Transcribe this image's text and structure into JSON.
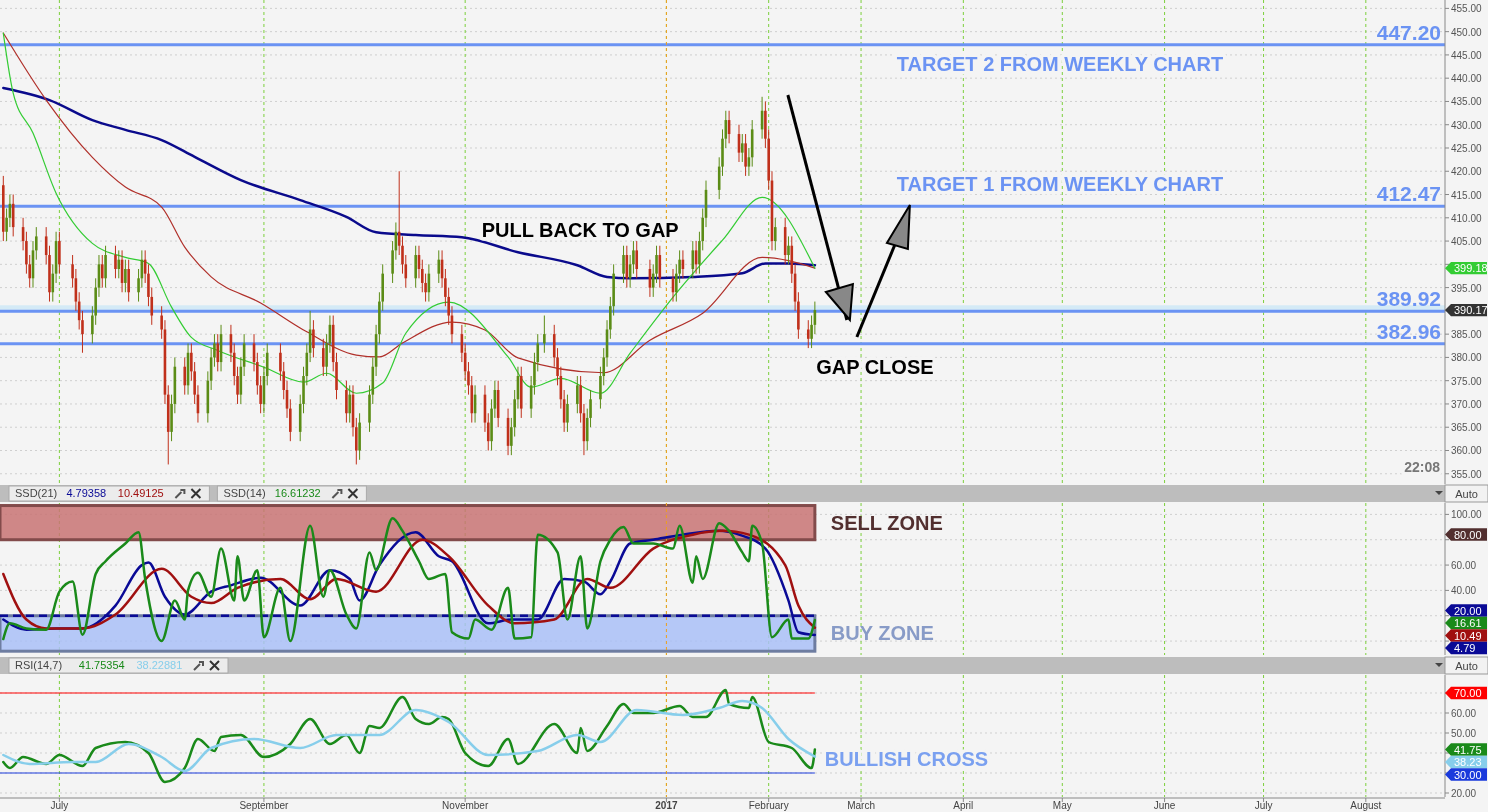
{
  "chart_data": [
    {
      "type": "candlestick",
      "xlim": [
        "2016-06-13",
        "2017-08-25"
      ],
      "ylim": [
        352.8,
        456.8
      ],
      "xticks": [
        {
          "value": "2016-07-01",
          "label": null
        },
        {
          "value": "2016-09-01",
          "label": null
        },
        {
          "value": "2016-11-01",
          "label": null
        },
        {
          "value": "2017-01-01",
          "label": null
        },
        {
          "value": "2017-02-01",
          "label": null
        },
        {
          "value": "2017-03-01",
          "label": null
        },
        {
          "value": "2017-04-01",
          "label": null
        },
        {
          "value": "2017-05-01",
          "label": null
        },
        {
          "value": "2017-06-01",
          "label": null
        },
        {
          "value": "2017-07-01",
          "label": null
        },
        {
          "value": "2017-08-01",
          "label": null
        }
      ],
      "yticks": [
        {
          "value": 355,
          "label": "355.00"
        },
        {
          "value": 360,
          "label": "360.00"
        },
        {
          "value": 365,
          "label": "365.00"
        },
        {
          "value": 370,
          "label": "370.00"
        },
        {
          "value": 375,
          "label": "375.00"
        },
        {
          "value": 380,
          "label": "380.00"
        },
        {
          "value": 385,
          "label": "385.00"
        },
        {
          "value": 390,
          "label": null
        },
        {
          "value": 395,
          "label": "395.00"
        },
        {
          "value": 400,
          "label": null
        },
        {
          "value": 405,
          "label": "405.00"
        },
        {
          "value": 410,
          "label": "410.00"
        },
        {
          "value": 415,
          "label": "415.00"
        },
        {
          "value": 420,
          "label": "420.00"
        },
        {
          "value": 425,
          "label": "425.00"
        },
        {
          "value": 430,
          "label": "430.00"
        },
        {
          "value": 435,
          "label": "435.00"
        },
        {
          "value": 440,
          "label": "440.00"
        },
        {
          "value": 445,
          "label": "445.00"
        },
        {
          "value": 450,
          "label": "450.00"
        },
        {
          "value": 455,
          "label": "455.00"
        }
      ],
      "tick_labels": "y",
      "grid": true,
      "x": [
        "2016-06-14",
        "2016-06-15",
        "2016-06-16",
        "2016-06-17",
        "2016-06-20",
        "2016-06-21",
        "2016-06-22",
        "2016-06-23",
        "2016-06-24",
        "2016-06-27",
        "2016-06-28",
        "2016-06-29",
        "2016-06-30",
        "2016-07-01",
        "2016-07-05",
        "2016-07-06",
        "2016-07-07",
        "2016-07-08",
        "2016-07-11",
        "2016-07-12",
        "2016-07-13",
        "2016-07-14",
        "2016-07-15",
        "2016-07-18",
        "2016-07-19",
        "2016-07-20",
        "2016-07-21",
        "2016-07-22",
        "2016-07-25",
        "2016-07-26",
        "2016-07-27",
        "2016-07-28",
        "2016-07-29",
        "2016-08-01",
        "2016-08-02",
        "2016-08-03",
        "2016-08-04",
        "2016-08-05",
        "2016-08-08",
        "2016-08-09",
        "2016-08-10",
        "2016-08-11",
        "2016-08-12",
        "2016-08-15",
        "2016-08-16",
        "2016-08-17",
        "2016-08-18",
        "2016-08-19",
        "2016-08-22",
        "2016-08-23",
        "2016-08-24",
        "2016-08-25",
        "2016-08-26",
        "2016-08-29",
        "2016-08-30",
        "2016-08-31",
        "2016-09-01",
        "2016-09-02",
        "2016-09-06",
        "2016-09-07",
        "2016-09-08",
        "2016-09-09",
        "2016-09-12",
        "2016-09-13",
        "2016-09-14",
        "2016-09-15",
        "2016-09-16",
        "2016-09-19",
        "2016-09-20",
        "2016-09-21",
        "2016-09-22",
        "2016-09-23",
        "2016-09-26",
        "2016-09-27",
        "2016-09-28",
        "2016-09-29",
        "2016-09-30",
        "2016-10-03",
        "2016-10-04",
        "2016-10-05",
        "2016-10-06",
        "2016-10-07",
        "2016-10-10",
        "2016-10-11",
        "2016-10-12",
        "2016-10-13",
        "2016-10-14",
        "2016-10-17",
        "2016-10-18",
        "2016-10-19",
        "2016-10-20",
        "2016-10-21",
        "2016-10-24",
        "2016-10-25",
        "2016-10-26",
        "2016-10-27",
        "2016-10-28",
        "2016-10-31",
        "2016-11-01",
        "2016-11-02",
        "2016-11-03",
        "2016-11-04",
        "2016-11-07",
        "2016-11-08",
        "2016-11-09",
        "2016-11-10",
        "2016-11-11",
        "2016-11-14",
        "2016-11-15",
        "2016-11-16",
        "2016-11-17",
        "2016-11-18",
        "2016-11-21",
        "2016-11-22",
        "2016-11-23",
        "2016-11-25",
        "2016-11-28",
        "2016-11-29",
        "2016-11-30",
        "2016-12-01",
        "2016-12-02",
        "2016-12-05",
        "2016-12-06",
        "2016-12-07",
        "2016-12-08",
        "2016-12-09",
        "2016-12-12",
        "2016-12-13",
        "2016-12-14",
        "2016-12-15",
        "2016-12-16",
        "2016-12-19",
        "2016-12-20",
        "2016-12-21",
        "2016-12-22",
        "2016-12-23",
        "2016-12-27",
        "2016-12-28",
        "2016-12-29",
        "2016-12-30",
        "2017-01-03",
        "2017-01-04",
        "2017-01-05",
        "2017-01-06",
        "2017-01-09",
        "2017-01-10",
        "2017-01-11",
        "2017-01-12",
        "2017-01-13",
        "2017-01-17",
        "2017-01-18",
        "2017-01-19",
        "2017-01-20",
        "2017-01-23",
        "2017-01-24",
        "2017-01-25",
        "2017-01-26",
        "2017-01-27",
        "2017-01-30",
        "2017-01-31",
        "2017-02-01",
        "2017-02-02",
        "2017-02-03",
        "2017-02-06",
        "2017-02-07",
        "2017-02-08",
        "2017-02-09",
        "2017-02-10",
        "2017-02-13",
        "2017-02-14",
        "2017-02-15"
      ],
      "ohlc": [
        [
          417,
          419,
          405,
          407
        ],
        [
          407,
          412,
          405,
          410
        ],
        [
          410,
          415,
          408,
          413
        ],
        [
          413,
          415,
          406,
          408
        ],
        [
          408,
          410,
          403,
          405
        ],
        [
          405,
          407,
          398,
          400
        ],
        [
          400,
          402,
          395,
          397
        ],
        [
          397,
          405,
          395,
          403
        ],
        [
          403,
          408,
          401,
          406
        ],
        [
          406,
          408,
          400,
          402
        ],
        [
          402,
          404,
          392,
          394
        ],
        [
          394,
          400,
          392,
          398
        ],
        [
          398,
          407,
          396,
          405
        ],
        [
          405,
          407,
          398,
          400
        ],
        [
          400,
          402,
          395,
          397
        ],
        [
          397,
          399,
          390,
          392
        ],
        [
          392,
          394,
          386,
          388
        ],
        [
          388,
          390,
          381,
          385
        ],
        [
          385,
          391,
          383,
          389
        ],
        [
          389,
          397,
          387,
          395
        ],
        [
          395,
          402,
          393,
          400
        ],
        [
          400,
          402,
          395,
          397
        ],
        [
          397,
          404,
          395,
          402
        ],
        [
          402,
          404,
          397,
          399
        ],
        [
          399,
          403,
          397,
          401
        ],
        [
          401,
          403,
          394,
          396
        ],
        [
          396,
          401,
          394,
          399
        ],
        [
          399,
          401,
          392,
          394
        ],
        [
          394,
          399,
          392,
          397
        ],
        [
          397,
          403,
          395,
          401
        ],
        [
          401,
          403,
          396,
          398
        ],
        [
          398,
          400,
          391,
          393
        ],
        [
          393,
          395,
          387,
          389
        ],
        [
          389,
          391,
          384,
          386
        ],
        [
          386,
          388,
          370,
          372
        ],
        [
          372,
          374,
          357,
          364
        ],
        [
          364,
          372,
          362,
          370
        ],
        [
          370,
          380,
          368,
          378
        ],
        [
          378,
          380,
          372,
          374
        ],
        [
          374,
          383,
          372,
          381
        ],
        [
          381,
          383,
          375,
          377
        ],
        [
          377,
          379,
          370,
          372
        ],
        [
          372,
          374,
          366,
          368
        ],
        [
          368,
          377,
          366,
          375
        ],
        [
          375,
          382,
          373,
          380
        ],
        [
          380,
          385,
          378,
          383
        ],
        [
          383,
          385,
          377,
          379
        ],
        [
          379,
          387,
          377,
          385
        ],
        [
          385,
          387,
          379,
          381
        ],
        [
          381,
          383,
          374,
          376
        ],
        [
          376,
          378,
          370,
          372
        ],
        [
          372,
          380,
          370,
          378
        ],
        [
          378,
          385,
          376,
          383
        ],
        [
          383,
          385,
          377,
          379
        ],
        [
          379,
          381,
          372,
          374
        ],
        [
          374,
          376,
          368,
          370
        ],
        [
          370,
          378,
          368,
          376
        ],
        [
          376,
          383,
          374,
          381
        ],
        [
          381,
          383,
          375,
          377
        ],
        [
          377,
          379,
          371,
          373
        ],
        [
          373,
          375,
          367,
          369
        ],
        [
          369,
          371,
          362,
          364
        ],
        [
          364,
          372,
          362,
          370
        ],
        [
          370,
          378,
          368,
          376
        ],
        [
          376,
          383,
          374,
          381
        ],
        [
          381,
          390,
          379,
          386
        ],
        [
          386,
          388,
          380,
          382
        ],
        [
          382,
          384,
          376,
          378
        ],
        [
          378,
          385,
          376,
          383
        ],
        [
          383,
          389,
          381,
          387
        ],
        [
          387,
          389,
          377,
          379
        ],
        [
          379,
          381,
          371,
          373
        ],
        [
          373,
          375,
          366,
          368
        ],
        [
          368,
          374,
          366,
          372
        ],
        [
          372,
          374,
          363,
          365
        ],
        [
          365,
          367,
          357,
          360
        ],
        [
          360,
          368,
          358,
          366
        ],
        [
          366,
          374,
          364,
          372
        ],
        [
          372,
          380,
          370,
          378
        ],
        [
          378,
          387,
          376,
          385
        ],
        [
          385,
          394,
          383,
          392
        ],
        [
          392,
          400,
          390,
          398
        ],
        [
          398,
          405,
          396,
          403
        ],
        [
          403,
          409,
          401,
          407
        ],
        [
          407,
          420,
          402,
          404
        ],
        [
          404,
          406,
          398,
          400
        ],
        [
          400,
          402,
          395,
          397
        ],
        [
          397,
          404,
          395,
          402
        ],
        [
          402,
          404,
          397,
          399
        ],
        [
          399,
          401,
          394,
          396
        ],
        [
          396,
          398,
          392,
          394
        ],
        [
          394,
          400,
          392,
          398
        ],
        [
          398,
          403,
          396,
          401
        ],
        [
          401,
          403,
          395,
          397
        ],
        [
          397,
          399,
          391,
          393
        ],
        [
          393,
          395,
          387,
          389
        ],
        [
          389,
          391,
          383,
          385
        ],
        [
          385,
          387,
          379,
          381
        ],
        [
          381,
          383,
          375,
          377
        ],
        [
          377,
          379,
          372,
          374
        ],
        [
          374,
          376,
          366,
          368
        ],
        [
          368,
          374,
          366,
          372
        ],
        [
          372,
          374,
          364,
          366
        ],
        [
          366,
          368,
          360,
          362
        ],
        [
          362,
          371,
          360,
          369
        ],
        [
          369,
          375,
          367,
          373
        ],
        [
          373,
          375,
          365,
          367
        ],
        [
          367,
          369,
          359,
          361
        ],
        [
          361,
          367,
          359,
          365
        ],
        [
          365,
          373,
          363,
          371
        ],
        [
          371,
          378,
          369,
          376
        ],
        [
          376,
          378,
          367,
          369
        ],
        [
          369,
          376,
          367,
          374
        ],
        [
          374,
          381,
          372,
          379
        ],
        [
          379,
          385,
          377,
          383
        ],
        [
          383,
          389,
          381,
          385
        ],
        [
          385,
          387,
          378,
          380
        ],
        [
          380,
          382,
          374,
          376
        ],
        [
          376,
          378,
          369,
          371
        ],
        [
          371,
          373,
          364,
          366
        ],
        [
          366,
          372,
          364,
          370
        ],
        [
          370,
          376,
          368,
          374
        ],
        [
          374,
          376,
          366,
          368
        ],
        [
          368,
          370,
          359,
          362
        ],
        [
          362,
          369,
          360,
          367
        ],
        [
          367,
          373,
          365,
          371
        ],
        [
          371,
          378,
          369,
          376
        ],
        [
          376,
          382,
          374,
          380
        ],
        [
          380,
          388,
          378,
          386
        ],
        [
          386,
          393,
          384,
          391
        ],
        [
          391,
          400,
          389,
          398
        ],
        [
          398,
          404,
          396,
          402
        ],
        [
          402,
          404,
          395,
          397
        ],
        [
          397,
          402,
          395,
          400
        ],
        [
          400,
          405,
          398,
          403
        ],
        [
          403,
          405,
          397,
          399
        ],
        [
          399,
          401,
          393,
          395
        ],
        [
          395,
          400,
          393,
          398
        ],
        [
          398,
          404,
          396,
          402
        ],
        [
          402,
          404,
          395,
          397
        ],
        [
          397,
          399,
          392,
          394
        ],
        [
          394,
          400,
          392,
          398
        ],
        [
          398,
          403,
          396,
          401
        ],
        [
          401,
          403,
          397,
          399
        ],
        [
          399,
          405,
          397,
          403
        ],
        [
          403,
          405,
          398,
          400
        ],
        [
          400,
          407,
          398,
          405
        ],
        [
          405,
          412,
          403,
          410
        ],
        [
          410,
          418,
          408,
          416
        ],
        [
          416,
          423,
          414,
          421
        ],
        [
          421,
          429,
          419,
          427
        ],
        [
          427,
          433,
          425,
          431
        ],
        [
          431,
          433,
          426,
          428
        ],
        [
          428,
          430,
          422,
          424
        ],
        [
          424,
          428,
          422,
          426
        ],
        [
          426,
          428,
          419,
          421
        ],
        [
          421,
          425,
          419,
          423
        ],
        [
          423,
          431,
          421,
          429
        ],
        [
          429,
          436,
          427,
          433
        ],
        [
          433,
          435,
          425,
          427
        ],
        [
          427,
          429,
          416,
          418
        ],
        [
          418,
          420,
          403,
          405
        ],
        [
          405,
          410,
          403,
          408
        ],
        [
          408,
          410,
          400,
          402
        ],
        [
          402,
          406,
          400,
          404
        ],
        [
          404,
          406,
          396,
          398
        ],
        [
          398,
          400,
          390,
          392
        ],
        [
          392,
          394,
          384,
          386
        ],
        [
          386,
          388,
          382,
          384
        ],
        [
          384,
          389,
          382,
          387
        ],
        [
          387,
          392,
          385,
          390.17
        ]
      ],
      "series": [
        {
          "type": "line",
          "color": "#0a0a8c",
          "x": [
            "2016-06-14",
            "2016-06-28",
            "2016-07-11",
            "2016-07-21",
            "2016-08-01",
            "2016-08-11",
            "2016-08-25",
            "2016-09-12",
            "2016-09-26",
            "2016-10-05",
            "2016-10-17",
            "2016-10-31",
            "2016-11-17",
            "2016-12-05",
            "2016-12-14",
            "2016-12-21",
            "2017-01-09",
            "2017-01-24",
            "2017-01-31",
            "2017-02-07",
            "2017-02-15"
          ],
          "values": [
            437.9,
            435.3,
            431.0,
            428.9,
            426.7,
            423.1,
            418.1,
            413.8,
            410.2,
            406.9,
            406.3,
            405.8,
            402.6,
            399.8,
            397.3,
            397.0,
            397.3,
            398.1,
            400.2,
            400.2,
            399.8
          ]
        },
        {
          "type": "line",
          "color": "#b0302a",
          "x": [
            "2016-06-14",
            "2016-06-27",
            "2016-07-11",
            "2016-07-21",
            "2016-08-01",
            "2016-08-08",
            "2016-08-16",
            "2016-08-31",
            "2016-09-14",
            "2016-09-29",
            "2016-10-06",
            "2016-10-13",
            "2016-10-28",
            "2016-11-07",
            "2016-11-17",
            "2016-12-13",
            "2016-12-27",
            "2017-01-12",
            "2017-01-30",
            "2017-02-15"
          ],
          "values": [
            449.7,
            435.3,
            423.0,
            416.6,
            412.3,
            403.7,
            397.3,
            391.7,
            385.5,
            380.5,
            380.1,
            383.1,
            387.6,
            385.9,
            379.9,
            376.7,
            383.7,
            389.5,
            401.5,
            399.2
          ]
        },
        {
          "type": "line",
          "color": "#33cc33",
          "x": [
            "2016-06-14",
            "2016-06-17",
            "2016-06-23",
            "2016-06-30",
            "2016-07-11",
            "2016-07-21",
            "2016-07-28",
            "2016-08-04",
            "2016-08-10",
            "2016-08-18",
            "2016-09-01",
            "2016-09-13",
            "2016-09-20",
            "2016-09-29",
            "2016-10-07",
            "2016-10-14",
            "2016-10-27",
            "2016-11-14",
            "2016-11-21",
            "2016-11-30",
            "2016-12-12",
            "2016-12-21",
            "2017-01-04",
            "2017-01-18",
            "2017-01-30",
            "2017-02-15"
          ],
          "values": [
            449.7,
            436.8,
            428.2,
            415.3,
            404.5,
            401.5,
            400.2,
            390.8,
            384.3,
            381.5,
            377.9,
            374.7,
            376.6,
            372.3,
            374.5,
            385.2,
            391.9,
            380.1,
            373.6,
            375.5,
            372.3,
            380.9,
            393.8,
            405.2,
            414.4,
            399.18
          ]
        }
      ],
      "bands": [
        {
          "axis": "y",
          "from": 389.7,
          "to": 391.2,
          "color": "#d4eaf6"
        }
      ],
      "ref_lines": [
        {
          "axis": "y",
          "value": 447.2,
          "label": "447.20",
          "color": "#6b93f3"
        },
        {
          "axis": "y",
          "value": 412.47,
          "label": "412.47",
          "color": "#6b93f3"
        },
        {
          "axis": "y",
          "value": 389.92,
          "label": "389.92",
          "color": "#6b93f3"
        },
        {
          "axis": "y",
          "value": 382.96,
          "label": "382.96",
          "color": "#6b93f3"
        },
        {
          "axis": "x",
          "value": "2017-01-01",
          "color": "#f0a020",
          "line_style": "dashed"
        }
      ],
      "annotations": [
        "TARGET 2 FROM WEEKLY CHART",
        "TARGET 1 FROM WEEKLY CHART",
        "PULL BACK  TO GAP",
        "GAP CLOSE",
        "22:08",
        "399.18",
        "390.17"
      ]
    },
    {
      "type": "line",
      "title": "SSD(21)",
      "subtitle": "SSD(14)",
      "legend": "top left",
      "xlim": [
        "2016-06-13",
        "2017-08-25"
      ],
      "ylim": [
        -11,
        109
      ],
      "xticks": [
        {
          "value": "2016-07-01",
          "label": null
        },
        {
          "value": "2016-09-01",
          "label": null
        },
        {
          "value": "2016-11-01",
          "label": null
        },
        {
          "value": "2017-01-01",
          "label": null
        },
        {
          "value": "2017-02-01",
          "label": null
        },
        {
          "value": "2017-03-01",
          "label": null
        },
        {
          "value": "2017-04-01",
          "label": null
        },
        {
          "value": "2017-05-01",
          "label": null
        },
        {
          "value": "2017-06-01",
          "label": null
        },
        {
          "value": "2017-07-01",
          "label": null
        },
        {
          "value": "2017-08-01",
          "label": null
        }
      ],
      "yticks": [
        {
          "value": 0,
          "label": null
        },
        {
          "value": 20,
          "label": null
        },
        {
          "value": 40,
          "label": "40.00"
        },
        {
          "value": 60,
          "label": "60.00"
        },
        {
          "value": 80,
          "label": null
        },
        {
          "value": 100,
          "label": "100.00"
        }
      ],
      "tick_labels": "y",
      "grid": true,
      "series": [
        {
          "name": "4.79358",
          "color": "#0a0a96",
          "x": [
            "2016-06-14",
            "2016-06-21",
            "2016-06-30",
            "2016-07-08",
            "2016-07-18",
            "2016-07-26",
            "2016-07-28",
            "2016-08-02",
            "2016-08-08",
            "2016-08-16",
            "2016-08-22",
            "2016-08-31",
            "2016-09-12",
            "2016-09-21",
            "2016-09-27",
            "2016-09-30",
            "2016-10-06",
            "2016-10-17",
            "2016-10-24",
            "2016-10-28",
            "2016-11-08",
            "2016-11-15",
            "2016-11-23",
            "2016-12-01",
            "2016-12-07",
            "2016-12-12",
            "2016-12-15",
            "2016-12-21",
            "2016-12-28",
            "2017-01-06",
            "2017-01-17",
            "2017-01-23",
            "2017-01-31",
            "2017-02-07",
            "2017-02-10",
            "2017-02-15"
          ],
          "values": [
            17,
            9,
            10,
            10,
            28,
            60,
            62,
            35,
            21,
            39,
            44,
            50,
            28,
            56,
            49,
            32,
            60,
            86,
            67,
            63,
            14,
            17,
            17,
            49,
            47,
            37,
            47,
            77,
            80,
            84,
            87,
            84,
            73,
            32,
            7,
            4.79
          ]
        },
        {
          "name": "10.49125",
          "color": "#a01010",
          "x": [
            "2016-06-14",
            "2016-06-21",
            "2016-06-27",
            "2016-07-08",
            "2016-07-18",
            "2016-08-01",
            "2016-08-10",
            "2016-08-16",
            "2016-08-24",
            "2016-09-06",
            "2016-09-15",
            "2016-09-23",
            "2016-10-05",
            "2016-10-19",
            "2016-10-27",
            "2016-11-08",
            "2016-11-16",
            "2016-11-28",
            "2016-12-08",
            "2016-12-15",
            "2016-12-28",
            "2017-01-09",
            "2017-01-18",
            "2017-01-26",
            "2017-02-06",
            "2017-02-10",
            "2017-02-15"
          ],
          "values": [
            53,
            17,
            10,
            10,
            21,
            57,
            35,
            30,
            42,
            49,
            33,
            49,
            39,
            80,
            67,
            28,
            14,
            17,
            49,
            42,
            73,
            84,
            87,
            84,
            60,
            28,
            10.49
          ]
        },
        {
          "name": "16.61232",
          "color": "#1a8a1a",
          "x": [
            "2016-06-14",
            "2016-06-16",
            "2016-06-21",
            "2016-06-27",
            "2016-07-01",
            "2016-07-05",
            "2016-07-08",
            "2016-07-12",
            "2016-07-15",
            "2016-07-21",
            "2016-07-25",
            "2016-07-27",
            "2016-08-01",
            "2016-08-05",
            "2016-08-08",
            "2016-08-09",
            "2016-08-12",
            "2016-08-16",
            "2016-08-19",
            "2016-08-23",
            "2016-08-24",
            "2016-08-26",
            "2016-08-30",
            "2016-09-01",
            "2016-09-06",
            "2016-09-09",
            "2016-09-15",
            "2016-09-19",
            "2016-09-21",
            "2016-09-26",
            "2016-09-29",
            "2016-10-03",
            "2016-10-05",
            "2016-10-10",
            "2016-10-13",
            "2016-10-18",
            "2016-10-21",
            "2016-10-26",
            "2016-10-28",
            "2016-11-02",
            "2016-11-04",
            "2016-11-09",
            "2016-11-14",
            "2016-11-16",
            "2016-11-21",
            "2016-11-23",
            "2016-11-29",
            "2016-12-02",
            "2016-12-06",
            "2016-12-08",
            "2016-12-12",
            "2016-12-15",
            "2016-12-19",
            "2016-12-22",
            "2016-12-28",
            "2017-01-03",
            "2017-01-05",
            "2017-01-09",
            "2017-01-10",
            "2017-01-12",
            "2017-01-17",
            "2017-01-20",
            "2017-01-24",
            "2017-01-26",
            "2017-01-27",
            "2017-01-30",
            "2017-02-02",
            "2017-02-07",
            "2017-02-08",
            "2017-02-13",
            "2017-02-15"
          ],
          "values": [
            1.6,
            14,
            10,
            9,
            39,
            47,
            5,
            53,
            63,
            77,
            86,
            49,
            0,
            32,
            17,
            40,
            54,
            35,
            73,
            32,
            67,
            32,
            56,
            3,
            42,
            0,
            91,
            35,
            56,
            21,
            10,
            70,
            56,
            97,
            87,
            63,
            49,
            53,
            7,
            2,
            17,
            9,
            42,
            2,
            3,
            84,
            70,
            17,
            67,
            10,
            63,
            80,
            90,
            77,
            77,
            73,
            91,
            46,
            67,
            49,
            93,
            87,
            70,
            63,
            91,
            77,
            3,
            17,
            2,
            2,
            16.61
          ]
        }
      ],
      "bands": [
        {
          "axis": "y",
          "from": 80,
          "to": 107,
          "color": "#c87373",
          "label": "SELL ZONE"
        },
        {
          "axis": "y",
          "from": -8,
          "to": 20,
          "color": "#a9c0f7",
          "label": "BUY ZONE"
        }
      ],
      "ref_lines": [
        {
          "axis": "y",
          "value": 20,
          "color": "#0a0a96",
          "line_style": "dashed"
        },
        {
          "axis": "x",
          "value": "2017-01-01",
          "color": "#f0a020",
          "line_style": "dashed"
        }
      ],
      "annotations": [
        "80.00",
        "20.00",
        "16.61",
        "10.49",
        "4.79",
        "Auto"
      ]
    },
    {
      "type": "line",
      "title": "RSI(14,7)",
      "legend": "top left",
      "xlim": [
        "2016-06-13",
        "2017-08-25"
      ],
      "ylim": [
        18,
        79
      ],
      "xticks": [
        {
          "value": "2016-07-01",
          "label": "July"
        },
        {
          "value": "2016-09-01",
          "label": "September"
        },
        {
          "value": "2016-11-01",
          "label": "November"
        },
        {
          "value": "2017-01-01",
          "label": "2017"
        },
        {
          "value": "2017-02-01",
          "label": "February"
        },
        {
          "value": "2017-03-01",
          "label": "March"
        },
        {
          "value": "2017-04-01",
          "label": "April"
        },
        {
          "value": "2017-05-01",
          "label": "May"
        },
        {
          "value": "2017-06-01",
          "label": "June"
        },
        {
          "value": "2017-07-01",
          "label": "July"
        },
        {
          "value": "2017-08-01",
          "label": "August"
        }
      ],
      "yticks": [
        {
          "value": 20,
          "label": "20.00"
        },
        {
          "value": 30,
          "label": null
        },
        {
          "value": 40,
          "label": null
        },
        {
          "value": 50,
          "label": "50.00"
        },
        {
          "value": 60,
          "label": "60.00"
        },
        {
          "value": 70,
          "label": null
        }
      ],
      "grid": true,
      "series": [
        {
          "name": "41.75354",
          "color": "#1a8a1a",
          "x": [
            "2016-06-14",
            "2016-06-16",
            "2016-06-20",
            "2016-06-27",
            "2016-07-01",
            "2016-07-08",
            "2016-07-12",
            "2016-07-21",
            "2016-07-28",
            "2016-08-02",
            "2016-08-08",
            "2016-08-12",
            "2016-08-17",
            "2016-08-19",
            "2016-08-25",
            "2016-09-01",
            "2016-09-09",
            "2016-09-15",
            "2016-09-21",
            "2016-09-26",
            "2016-09-30",
            "2016-10-03",
            "2016-10-06",
            "2016-10-13",
            "2016-10-17",
            "2016-10-21",
            "2016-10-25",
            "2016-10-27",
            "2016-11-01",
            "2016-11-08",
            "2016-11-14",
            "2016-11-17",
            "2016-11-28",
            "2016-12-05",
            "2016-12-06",
            "2016-12-08",
            "2016-12-14",
            "2016-12-19",
            "2016-12-22",
            "2016-12-28",
            "2017-01-05",
            "2017-01-09",
            "2017-01-13",
            "2017-01-19",
            "2017-01-20",
            "2017-01-26",
            "2017-01-27",
            "2017-02-01",
            "2017-02-08",
            "2017-02-14",
            "2017-02-15"
          ],
          "values": [
            35.5,
            32.5,
            38,
            34.5,
            39,
            33.5,
            42.5,
            45.5,
            40,
            25.5,
            32.5,
            47,
            41,
            48,
            49,
            38,
            44.5,
            57,
            44.5,
            49,
            40,
            53.5,
            52.5,
            68,
            57,
            54.5,
            58,
            57,
            40,
            33.5,
            47,
            34.5,
            54.5,
            40,
            52.5,
            41,
            53.5,
            64.5,
            60,
            60,
            63.5,
            58,
            58,
            71.5,
            64.5,
            62.5,
            68,
            45.5,
            42.5,
            32.5,
            41.75
          ]
        },
        {
          "name": "38.22881",
          "color": "#87ceeb",
          "x": [
            "2016-06-14",
            "2016-06-22",
            "2016-07-05",
            "2016-07-12",
            "2016-07-22",
            "2016-08-01",
            "2016-08-08",
            "2016-08-16",
            "2016-08-29",
            "2016-09-12",
            "2016-09-23",
            "2016-10-06",
            "2016-10-17",
            "2016-10-27",
            "2016-11-08",
            "2016-11-23",
            "2016-12-05",
            "2016-12-12",
            "2016-12-23",
            "2017-01-06",
            "2017-01-17",
            "2017-01-24",
            "2017-01-30",
            "2017-02-07",
            "2017-02-15"
          ],
          "values": [
            39,
            34.5,
            35.5,
            35.5,
            44.5,
            38,
            31,
            42.5,
            47,
            42.5,
            49,
            49,
            61.5,
            55.5,
            39,
            41,
            49,
            45.5,
            61.5,
            59,
            62.5,
            66,
            62.5,
            47,
            38.23
          ]
        }
      ],
      "ref_lines": [
        {
          "axis": "y",
          "value": 70,
          "color": "#ff0000"
        },
        {
          "axis": "y",
          "value": 30,
          "color": "#1a3adc"
        },
        {
          "axis": "x",
          "value": "2017-01-01",
          "color": "#f0a020",
          "line_style": "dashed"
        }
      ],
      "annotations": [
        "BULLISH CROSS",
        "70.00",
        "30.00",
        "41.75",
        "38.23",
        "Auto"
      ]
    }
  ]
}
